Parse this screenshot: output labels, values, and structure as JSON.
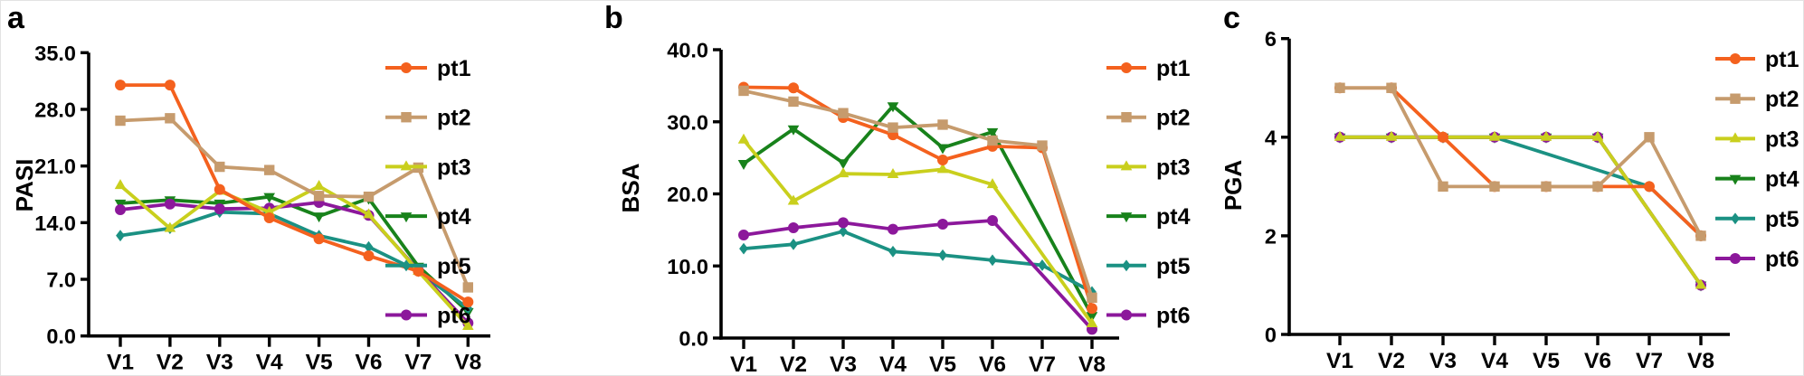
{
  "figure": {
    "panels": [
      {
        "label": "a"
      },
      {
        "label": "b"
      },
      {
        "label": "c"
      }
    ],
    "background": "#ffffff",
    "axis_color": "#000000",
    "text_color": "#000000"
  },
  "chart_data": [
    {
      "type": "line",
      "panel_label": "a",
      "title": "",
      "xlabel": "",
      "ylabel": "PASI",
      "categories": [
        "V1",
        "V2",
        "V3",
        "V4",
        "V5",
        "V6",
        "V7",
        "V8"
      ],
      "ylim": [
        0,
        35
      ],
      "yticks": [
        0,
        7,
        14,
        21,
        28,
        35
      ],
      "ytick_labels": [
        "0.0",
        "7.0",
        "14.0",
        "21.0",
        "28.0",
        "35.0"
      ],
      "grid": false,
      "legend_position": "right",
      "legend_labels": [
        "pt1",
        "pt2",
        "pt3",
        "pt4",
        "pt5",
        "pt6"
      ],
      "series": [
        {
          "name": "pt1",
          "color": "#F4611E",
          "marker": "circle",
          "values": [
            31.0,
            31.0,
            18.1,
            14.6,
            12.0,
            9.9,
            8.0,
            4.2
          ]
        },
        {
          "name": "pt2",
          "color": "#C69B6D",
          "marker": "square",
          "values": [
            26.6,
            26.9,
            20.9,
            20.5,
            17.3,
            17.2,
            20.8,
            6.0
          ]
        },
        {
          "name": "pt3",
          "color": "#C9CF1D",
          "marker": "triangle-up",
          "values": [
            18.6,
            13.3,
            17.9,
            15.3,
            18.5,
            15.0,
            8.0,
            1.2
          ]
        },
        {
          "name": "pt4",
          "color": "#18821B",
          "marker": "triangle-down",
          "values": [
            16.4,
            16.8,
            16.4,
            17.2,
            14.8,
            17.0,
            8.6,
            3.0
          ]
        },
        {
          "name": "pt5",
          "color": "#1B9183",
          "marker": "diamond",
          "values": [
            12.4,
            13.3,
            15.3,
            15.1,
            12.4,
            11.0,
            8.0,
            3.4
          ]
        },
        {
          "name": "pt6",
          "color": "#8C189B",
          "marker": "circle",
          "values": [
            15.6,
            16.3,
            15.7,
            15.8,
            16.5,
            14.9,
            8.1,
            1.6
          ]
        }
      ]
    },
    {
      "type": "line",
      "panel_label": "b",
      "title": "",
      "xlabel": "",
      "ylabel": "BSA",
      "categories": [
        "V1",
        "V2",
        "V3",
        "V4",
        "V5",
        "V6",
        "V7",
        "V8"
      ],
      "ylim": [
        0,
        40
      ],
      "yticks": [
        0,
        10,
        20,
        30,
        40
      ],
      "ytick_labels": [
        "0.0",
        "10.0",
        "20.0",
        "30.0",
        "40.0"
      ],
      "grid": false,
      "legend_position": "right",
      "legend_labels": [
        "pt1",
        "pt2",
        "pt3",
        "pt4",
        "pt5",
        "pt6"
      ],
      "series": [
        {
          "name": "pt1",
          "color": "#F4611E",
          "marker": "circle",
          "values": [
            34.8,
            34.7,
            30.6,
            28.2,
            24.7,
            26.6,
            26.4,
            4.1
          ]
        },
        {
          "name": "pt2",
          "color": "#C69B6D",
          "marker": "square",
          "values": [
            34.3,
            32.8,
            31.2,
            29.2,
            29.6,
            27.4,
            26.7,
            5.6
          ]
        },
        {
          "name": "pt3",
          "color": "#C9CF1D",
          "marker": "triangle-up",
          "values": [
            27.5,
            19.0,
            22.8,
            22.7,
            23.4,
            21.3,
            null,
            2.0
          ]
        },
        {
          "name": "pt4",
          "color": "#18821B",
          "marker": "triangle-down",
          "values": [
            24.2,
            29.0,
            24.3,
            32.2,
            26.4,
            28.6,
            null,
            3.1
          ]
        },
        {
          "name": "pt5",
          "color": "#1B9183",
          "marker": "diamond",
          "values": [
            12.4,
            13.0,
            14.8,
            12.0,
            11.5,
            10.8,
            10.1,
            6.4
          ]
        },
        {
          "name": "pt6",
          "color": "#8C189B",
          "marker": "circle",
          "values": [
            14.3,
            15.3,
            16.0,
            15.1,
            15.8,
            16.3,
            null,
            1.2
          ]
        }
      ]
    },
    {
      "type": "line",
      "panel_label": "c",
      "title": "",
      "xlabel": "",
      "ylabel": "PGA",
      "categories": [
        "V1",
        "V2",
        "V3",
        "V4",
        "V5",
        "V6",
        "V7",
        "V8"
      ],
      "ylim": [
        0,
        6
      ],
      "yticks": [
        0,
        2,
        4,
        6
      ],
      "ytick_labels": [
        "0",
        "2",
        "4",
        "6"
      ],
      "grid": false,
      "legend_position": "right",
      "legend_labels": [
        "pt1",
        "pt2",
        "pt3",
        "pt4",
        "pt5",
        "pt6"
      ],
      "series": [
        {
          "name": "pt1",
          "color": "#F4611E",
          "marker": "circle",
          "values": [
            5,
            5,
            4,
            3,
            3,
            3,
            3,
            2
          ]
        },
        {
          "name": "pt2",
          "color": "#C69B6D",
          "marker": "square",
          "values": [
            5,
            5,
            3,
            3,
            3,
            3,
            4,
            2
          ]
        },
        {
          "name": "pt3",
          "color": "#C9CF1D",
          "marker": "triangle-up",
          "values": [
            4,
            4,
            4,
            4,
            4,
            4,
            null,
            1
          ]
        },
        {
          "name": "pt4",
          "color": "#18821B",
          "marker": "triangle-down",
          "values": [
            4,
            4,
            4,
            4,
            4,
            4,
            null,
            1
          ]
        },
        {
          "name": "pt5",
          "color": "#1B9183",
          "marker": "diamond",
          "values": [
            4,
            4,
            4,
            4,
            null,
            null,
            3,
            2
          ]
        },
        {
          "name": "pt6",
          "color": "#8C189B",
          "marker": "circle",
          "values": [
            4,
            4,
            4,
            4,
            4,
            4,
            null,
            1
          ]
        }
      ]
    }
  ]
}
